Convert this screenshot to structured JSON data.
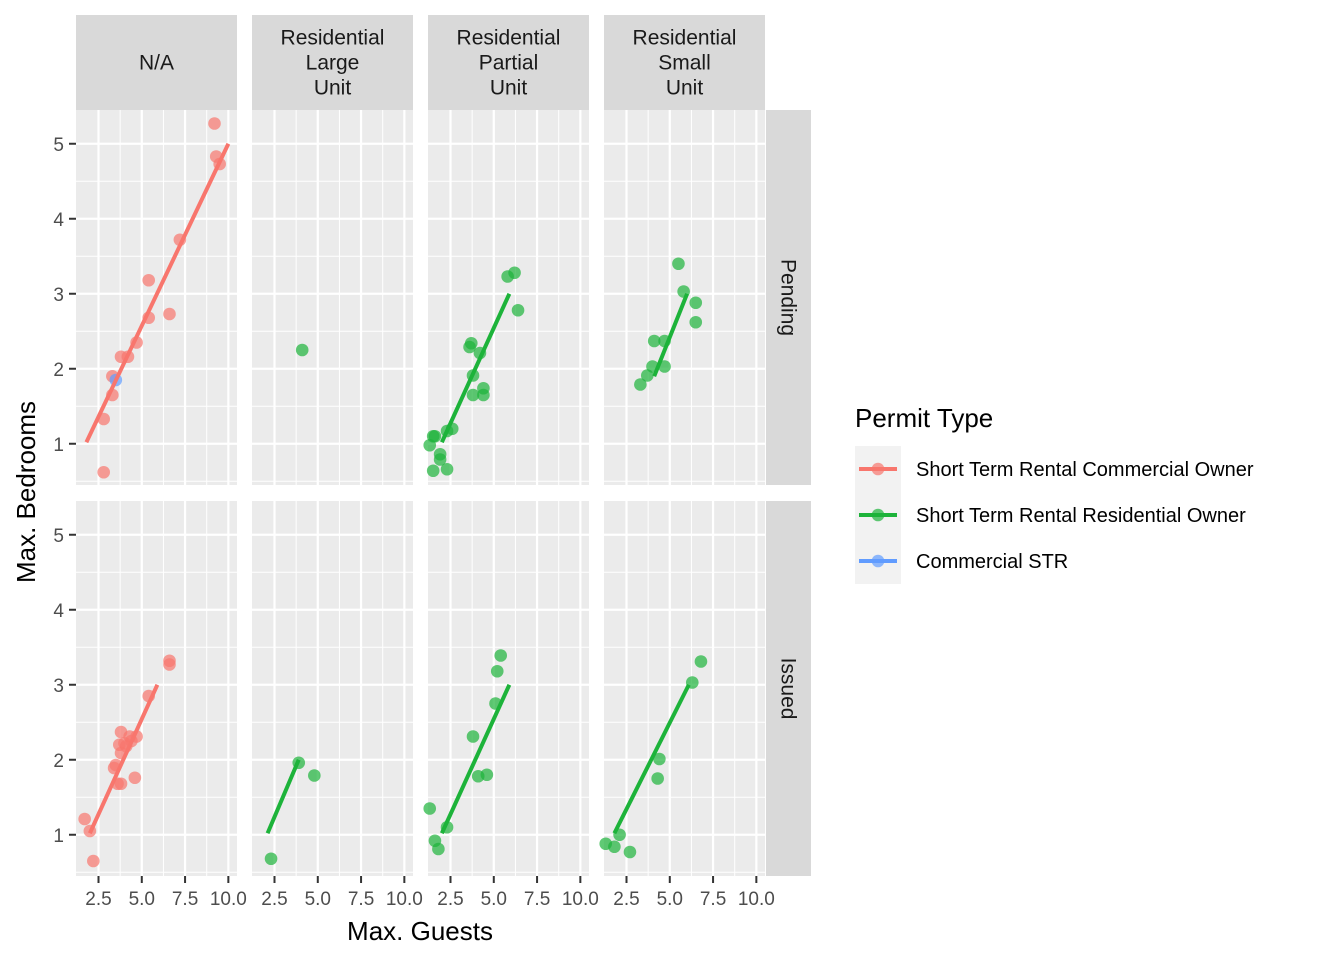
{
  "chart_data": {
    "type": "scatter",
    "xlabel": "Max. Guests",
    "ylabel": "Max. Bedrooms",
    "xlim": [
      1.2,
      10.5
    ],
    "ylim": [
      0.45,
      5.45
    ],
    "x_ticks": [
      2.5,
      5.0,
      7.5,
      10.0
    ],
    "x_tick_labels": [
      "2.5",
      "5.0",
      "7.5",
      "10.0"
    ],
    "y_ticks": [
      1,
      2,
      3,
      4,
      5
    ],
    "y_tick_labels": [
      "1",
      "2",
      "3",
      "4",
      "5"
    ],
    "columns": [
      "N/A",
      "Residential\nLarge\nUnit",
      "Residential\nPartial\nUnit",
      "Residential\nSmall\nUnit"
    ],
    "rows": [
      "Pending",
      "Issued"
    ],
    "legend": {
      "title": "Permit Type",
      "placement": "right",
      "entries": [
        {
          "label": "Short Term Rental Commercial Owner",
          "color": "#F8766D"
        },
        {
          "label": "Short Term Rental Residential Owner",
          "color": "#1DB33A"
        },
        {
          "label": "Commercial STR",
          "color": "#619CFF"
        }
      ]
    },
    "panels": [
      {
        "row": 0,
        "col": 0,
        "series": [
          {
            "group": 0,
            "points": [
              [
                9.2,
                5.27
              ],
              [
                9.3,
                4.83
              ],
              [
                9.5,
                4.73
              ],
              [
                7.2,
                3.72
              ],
              [
                5.4,
                3.18
              ],
              [
                6.6,
                2.73
              ],
              [
                5.4,
                2.68
              ],
              [
                4.7,
                2.35
              ],
              [
                3.8,
                2.16
              ],
              [
                4.2,
                2.16
              ],
              [
                3.3,
                1.9
              ],
              [
                3.3,
                1.65
              ],
              [
                2.8,
                1.33
              ],
              [
                2.8,
                0.62
              ]
            ],
            "line": [
              [
                1.8,
                1.02
              ],
              [
                10.0,
                5.0
              ]
            ]
          },
          {
            "group": 2,
            "points": [
              [
                3.5,
                1.85
              ]
            ]
          }
        ]
      },
      {
        "row": 0,
        "col": 1,
        "series": [
          {
            "group": 1,
            "points": [
              [
                4.1,
                2.25
              ]
            ]
          }
        ]
      },
      {
        "row": 0,
        "col": 2,
        "series": [
          {
            "group": 1,
            "points": [
              [
                6.2,
                3.28
              ],
              [
                5.8,
                3.23
              ],
              [
                6.4,
                2.78
              ],
              [
                3.6,
                2.29
              ],
              [
                3.7,
                2.34
              ],
              [
                4.2,
                2.21
              ],
              [
                3.8,
                1.91
              ],
              [
                4.4,
                1.74
              ],
              [
                3.8,
                1.65
              ],
              [
                4.4,
                1.65
              ],
              [
                2.6,
                1.2
              ],
              [
                2.3,
                1.17
              ],
              [
                1.5,
                1.1
              ],
              [
                1.6,
                1.1
              ],
              [
                1.3,
                0.98
              ],
              [
                1.9,
                0.86
              ],
              [
                1.9,
                0.79
              ],
              [
                1.5,
                0.64
              ],
              [
                2.3,
                0.66
              ]
            ],
            "line": [
              [
                2.0,
                1.02
              ],
              [
                5.9,
                3.0
              ]
            ]
          }
        ]
      },
      {
        "row": 0,
        "col": 3,
        "series": [
          {
            "group": 1,
            "points": [
              [
                5.5,
                3.4
              ],
              [
                5.8,
                3.03
              ],
              [
                6.5,
                2.88
              ],
              [
                6.5,
                2.62
              ],
              [
                4.1,
                2.37
              ],
              [
                4.7,
                2.37
              ],
              [
                4.0,
                2.03
              ],
              [
                4.7,
                2.03
              ],
              [
                3.7,
                1.91
              ],
              [
                3.3,
                1.79
              ]
            ],
            "line": [
              [
                4.1,
                1.9
              ],
              [
                6.0,
                3.0
              ]
            ]
          }
        ]
      },
      {
        "row": 1,
        "col": 0,
        "series": [
          {
            "group": 0,
            "points": [
              [
                6.6,
                3.32
              ],
              [
                6.6,
                3.27
              ],
              [
                5.4,
                2.85
              ],
              [
                3.8,
                2.37
              ],
              [
                4.7,
                2.31
              ],
              [
                4.3,
                2.31
              ],
              [
                3.7,
                2.2
              ],
              [
                4.0,
                2.22
              ],
              [
                4.4,
                2.25
              ],
              [
                4.1,
                2.18
              ],
              [
                3.8,
                2.09
              ],
              [
                3.5,
                1.93
              ],
              [
                3.4,
                1.89
              ],
              [
                4.6,
                1.76
              ],
              [
                3.8,
                1.68
              ],
              [
                3.6,
                1.68
              ],
              [
                1.7,
                1.21
              ],
              [
                2.0,
                1.05
              ],
              [
                2.2,
                0.65
              ]
            ],
            "line": [
              [
                2.0,
                1.02
              ],
              [
                5.9,
                3.0
              ]
            ]
          }
        ]
      },
      {
        "row": 1,
        "col": 1,
        "series": [
          {
            "group": 1,
            "points": [
              [
                3.9,
                1.96
              ],
              [
                4.8,
                1.79
              ],
              [
                2.3,
                0.68
              ]
            ],
            "line": [
              [
                2.1,
                1.02
              ],
              [
                3.9,
                2.0
              ]
            ]
          }
        ]
      },
      {
        "row": 1,
        "col": 2,
        "series": [
          {
            "group": 1,
            "points": [
              [
                5.4,
                3.39
              ],
              [
                5.2,
                3.18
              ],
              [
                5.1,
                2.75
              ],
              [
                3.8,
                2.31
              ],
              [
                4.6,
                1.8
              ],
              [
                4.1,
                1.78
              ],
              [
                2.3,
                1.1
              ],
              [
                1.3,
                1.35
              ],
              [
                1.6,
                0.92
              ],
              [
                1.8,
                0.81
              ]
            ],
            "line": [
              [
                2.0,
                1.02
              ],
              [
                5.9,
                3.0
              ]
            ]
          }
        ]
      },
      {
        "row": 1,
        "col": 3,
        "series": [
          {
            "group": 1,
            "points": [
              [
                6.8,
                3.31
              ],
              [
                6.3,
                3.03
              ],
              [
                4.4,
                2.01
              ],
              [
                4.3,
                1.75
              ],
              [
                2.1,
                1.0
              ],
              [
                1.3,
                0.88
              ],
              [
                1.8,
                0.84
              ],
              [
                2.7,
                0.77
              ]
            ],
            "line": [
              [
                1.8,
                1.02
              ],
              [
                6.1,
                3.0
              ]
            ]
          }
        ]
      }
    ]
  }
}
